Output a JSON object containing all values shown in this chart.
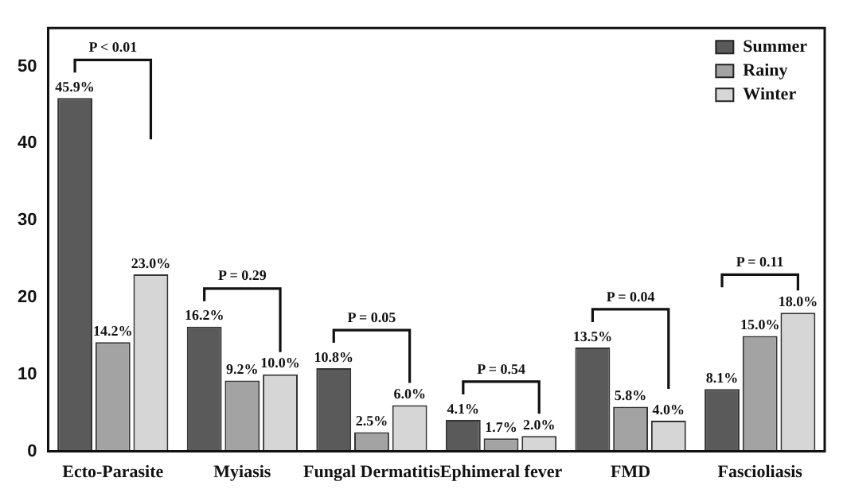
{
  "chart_data": {
    "type": "bar",
    "categories": [
      "Ecto-Parasite",
      "Myiasis",
      "Fungal Dermatitis",
      "Ephimeral fever",
      "FMD",
      "Fascioliasis"
    ],
    "series": [
      {
        "name": "Summer",
        "color": "#5a5a5a",
        "values": [
          45.9,
          16.2,
          10.8,
          4.1,
          13.5,
          8.1
        ],
        "value_labels": [
          "45.9%",
          "16.2%",
          "10.8%",
          "4.1%",
          "13.5%",
          "8.1%"
        ]
      },
      {
        "name": "Rainy",
        "color": "#a3a3a3",
        "values": [
          14.2,
          9.2,
          2.5,
          1.7,
          5.8,
          15.0
        ],
        "value_labels": [
          "14.2%",
          "9.2%",
          "2.5%",
          "1.7%",
          "5.8%",
          "15.0%"
        ]
      },
      {
        "name": "Winter",
        "color": "#d6d6d6",
        "values": [
          23.0,
          10.0,
          6.0,
          2.0,
          4.0,
          18.0
        ],
        "value_labels": [
          "23.0%",
          "10.0%",
          "6.0%",
          "2.0%",
          "4.0%",
          "18.0%"
        ]
      }
    ],
    "annotations": [
      "P < 0.01",
      "P = 0.29",
      "P = 0.05",
      "P = 0.54",
      "P = 0.04",
      "P = 0.11"
    ],
    "ylim": [
      0,
      55
    ],
    "yticks": [
      0,
      10,
      20,
      30,
      40,
      50
    ],
    "grid": false,
    "legend": "top right"
  }
}
